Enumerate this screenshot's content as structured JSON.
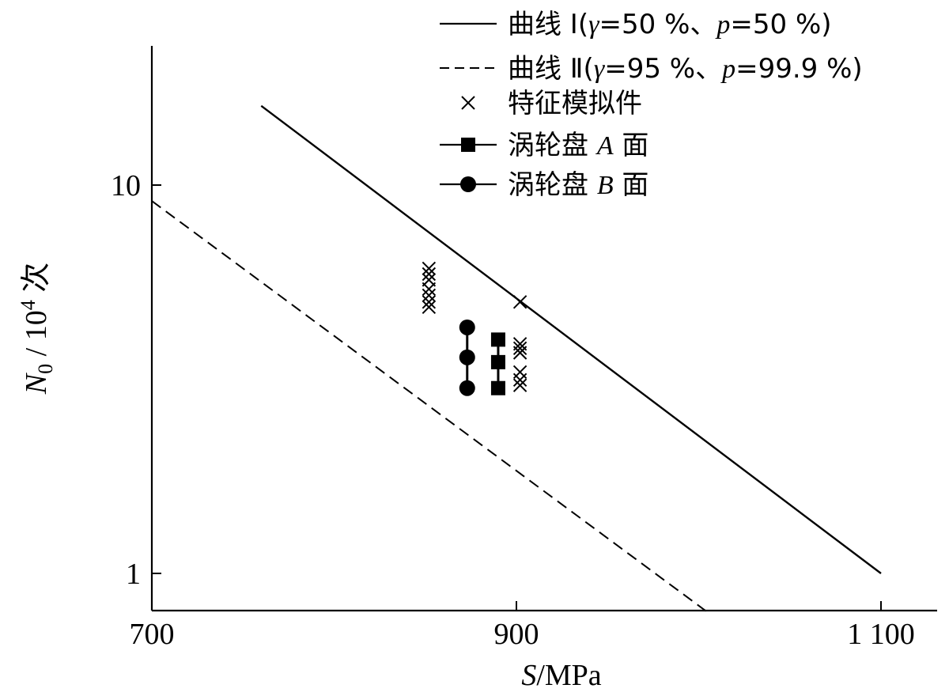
{
  "chart_data": {
    "type": "scatter",
    "x_axis": {
      "label_var": "S",
      "label_unit": "/MPa",
      "range": [
        700,
        1100
      ],
      "ticks": [
        {
          "value": 700,
          "label": "700"
        },
        {
          "value": 900,
          "label": "900"
        },
        {
          "value": 1100,
          "label": "1 100"
        }
      ]
    },
    "y_axis": {
      "label_var": "N",
      "label_sub": "0",
      "label_mid": " / 10",
      "label_sup": "4",
      "label_tail": " 次",
      "scale": "log",
      "ticks": [
        {
          "value": 1,
          "label": "1"
        },
        {
          "value": 10,
          "label": "10"
        }
      ]
    },
    "grid": false,
    "legend_position": "top-right",
    "series": [
      {
        "name": "曲线 I（γ=50 %、p=50 %）",
        "legend_text": "曲线 Ⅰ(",
        "legend_gamma": "γ",
        "legend_mid": "=50 %、",
        "legend_p": "p",
        "legend_end": "=50 %)",
        "kind": "line",
        "style": "solid",
        "points": [
          {
            "x": 760,
            "y": 16.0
          },
          {
            "x": 1100,
            "y": 1.0
          }
        ]
      },
      {
        "name": "曲线 II（γ=95 %、p=99.9 %）",
        "legend_text": "曲线 Ⅱ(",
        "legend_gamma": "γ",
        "legend_mid": "=95 %、",
        "legend_p": "p",
        "legend_end": "=99.9 %)",
        "kind": "line",
        "style": "dashed",
        "points": [
          {
            "x": 700,
            "y": 9.1
          },
          {
            "x": 1004,
            "y": 0.8
          }
        ]
      },
      {
        "name": "特征模拟件",
        "legend_text": "特征模拟件",
        "kind": "scatter",
        "marker": "x",
        "points": [
          {
            "x": 852,
            "y": 6.1
          },
          {
            "x": 852,
            "y": 5.9
          },
          {
            "x": 852,
            "y": 5.7
          },
          {
            "x": 852,
            "y": 5.4
          },
          {
            "x": 852,
            "y": 5.2
          },
          {
            "x": 852,
            "y": 5.0
          },
          {
            "x": 852,
            "y": 4.85
          },
          {
            "x": 902,
            "y": 5.0
          },
          {
            "x": 902,
            "y": 3.9
          },
          {
            "x": 902,
            "y": 3.8
          },
          {
            "x": 902,
            "y": 3.7
          },
          {
            "x": 902,
            "y": 3.3
          },
          {
            "x": 902,
            "y": 3.15
          },
          {
            "x": 902,
            "y": 3.05
          }
        ]
      },
      {
        "name": "涡轮盘 A 面",
        "legend_text": "涡轮盘 ",
        "legend_italic": "A",
        "legend_tail": " 面",
        "kind": "errorbar",
        "marker": "square",
        "x": 890,
        "low": 3.0,
        "mid": 3.5,
        "high": 4.0
      },
      {
        "name": "涡轮盘 B 面",
        "legend_text": "涡轮盘 ",
        "legend_italic": "B",
        "legend_tail": " 面",
        "kind": "errorbar",
        "marker": "circle",
        "x": 873,
        "low": 3.0,
        "mid": 3.6,
        "high": 4.3
      }
    ]
  }
}
